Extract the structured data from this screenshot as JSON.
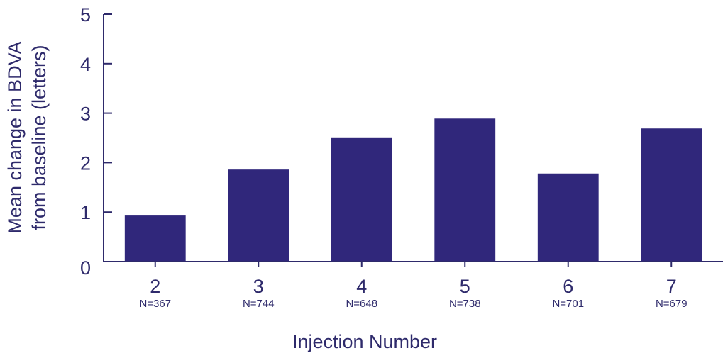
{
  "chart_data": {
    "type": "bar",
    "categories": [
      "2",
      "3",
      "4",
      "5",
      "6",
      "7"
    ],
    "sample_sizes": [
      "N=367",
      "N=744",
      "N=648",
      "N=738",
      "N=701",
      "N=679"
    ],
    "values": [
      0.93,
      1.86,
      2.51,
      2.89,
      1.78,
      2.69
    ],
    "xlabel": "Injection Number",
    "ylabel_lines": [
      "Mean change in BDVA",
      "from baseline (letters)"
    ],
    "ylim": [
      0,
      5
    ],
    "yticks": [
      0,
      1,
      2,
      3,
      4,
      5
    ],
    "grid": false,
    "legend": "none",
    "colors": {
      "bar": "#30277b",
      "axis": "#2e2a6b",
      "text": "#2e2a6b"
    }
  }
}
